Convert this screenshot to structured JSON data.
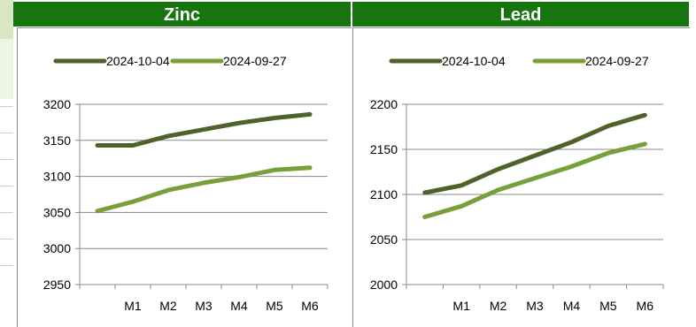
{
  "charts": [
    {
      "header": "Zinc",
      "chart_data": {
        "type": "line",
        "title": "Zinc",
        "categories": [
          "",
          "M1",
          "M2",
          "M3",
          "M4",
          "M5",
          "M6"
        ],
        "ylim": [
          2950,
          3200
        ],
        "yticks": [
          "3200",
          "3150",
          "3100",
          "3050",
          "3000",
          "2950"
        ],
        "series": [
          {
            "name": "2024-10-04",
            "color": "#4f6228",
            "values": [
              3143,
              3143,
              3156,
              3165,
              3174,
              3181,
              3186
            ]
          },
          {
            "name": "2024-09-27",
            "color": "#77a03b",
            "values": [
              3052,
              3065,
              3081,
              3091,
              3099,
              3109,
              3112
            ]
          }
        ],
        "grid": true,
        "legend": "top"
      }
    },
    {
      "header": "Lead",
      "chart_data": {
        "type": "line",
        "title": "Lead",
        "categories": [
          "",
          "M1",
          "M2",
          "M3",
          "M4",
          "M5",
          "M6"
        ],
        "ylim": [
          2000,
          2200
        ],
        "yticks": [
          "2200",
          "2150",
          "2100",
          "2050",
          "2000"
        ],
        "series": [
          {
            "name": "2024-10-04",
            "color": "#4f6228",
            "values": [
              2102,
              2110,
              2128,
              2143,
              2158,
              2176,
              2188
            ]
          },
          {
            "name": "2024-09-27",
            "color": "#77a03b",
            "values": [
              2075,
              2087,
              2105,
              2118,
              2131,
              2146,
              2156
            ]
          }
        ],
        "grid": true,
        "legend": "top"
      }
    }
  ]
}
